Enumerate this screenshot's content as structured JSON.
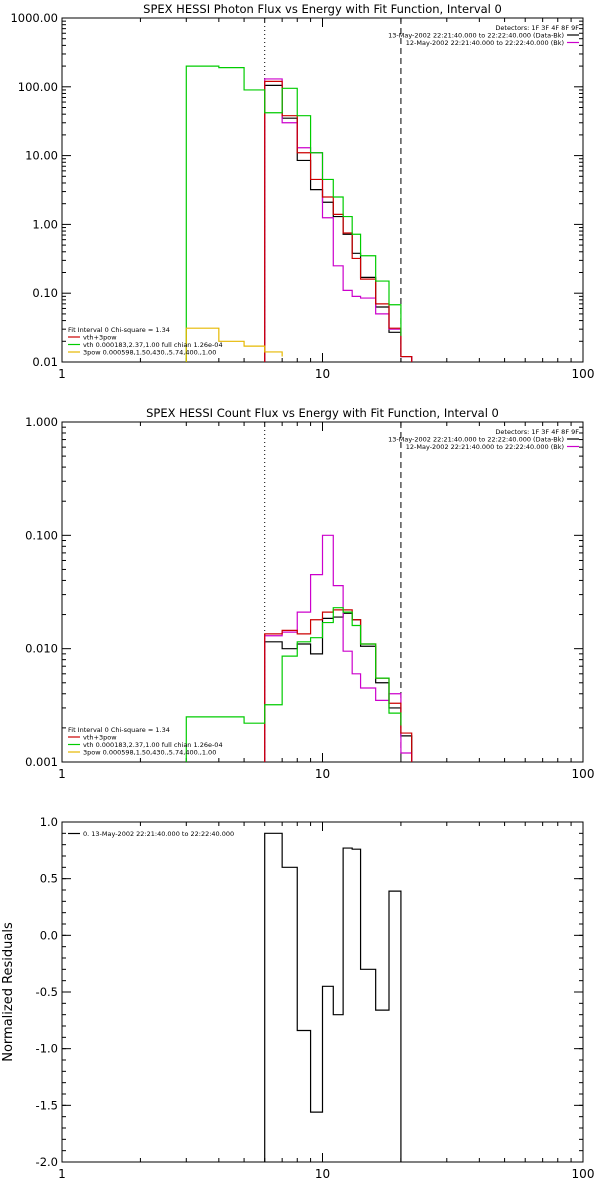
{
  "chart_data": [
    {
      "type": "line",
      "step": true,
      "title": "SPEX HESSI Photon Flux vs Energy with Fit Function, Interval 0",
      "xlabel": "",
      "ylabel": "",
      "xscale": "log",
      "yscale": "log",
      "xlim": [
        1,
        100
      ],
      "ylim": [
        0.01,
        1000
      ],
      "xticks": [
        {
          "v": 1,
          "label": "1"
        },
        {
          "v": 10,
          "label": "10"
        },
        {
          "v": 100,
          "label": "100"
        }
      ],
      "yticks": [
        {
          "v": 0.01,
          "label": "0.01"
        },
        {
          "v": 0.1,
          "label": "0.10"
        },
        {
          "v": 1,
          "label": "1.00"
        },
        {
          "v": 10,
          "label": "10.00"
        },
        {
          "v": 100,
          "label": "100.00"
        },
        {
          "v": 1000,
          "label": "1000.00"
        }
      ],
      "vlines": [
        {
          "x": 6.0,
          "style": "dotted",
          "color": "#000000"
        },
        {
          "x": 20.0,
          "style": "dashed",
          "color": "#000000"
        }
      ],
      "legend_right": {
        "header": "Detectors: 1F 3F 4F 8F 9F",
        "entries": [
          {
            "text": "13-May-2002 22:21:40.000 to 22:22:40.000 (Data-Bk)",
            "color": "#000000"
          },
          {
            "text": "12-May-2002 22:21:40.000 to 22:22:40.000 (Bk)",
            "color": "#cc00cc"
          }
        ]
      },
      "legend_left": {
        "header": "Fit Interval 0   Chi-square = 1.34",
        "entries": [
          {
            "text": "vth+3pow",
            "color": "#cc0000"
          },
          {
            "text": "vth 0.000183,2.37,1.00   full chian 1.26e-04",
            "color": "#00cc00"
          },
          {
            "text": "3pow 0.000598,1.50,430.,5.74,400.,1.00",
            "color": "#e6b800"
          }
        ]
      },
      "series": [
        {
          "color": "#000000",
          "edges": [
            6,
            7,
            8,
            9,
            10,
            11,
            12,
            13,
            14,
            16,
            18,
            20,
            22
          ],
          "values": [
            105,
            35,
            8.5,
            3.2,
            2.1,
            1.3,
            0.72,
            0.38,
            0.17,
            0.063,
            0.027,
            0.012
          ]
        },
        {
          "color": "#cc00cc",
          "edges": [
            6,
            7,
            8,
            9,
            10,
            11,
            12,
            13,
            14,
            16,
            18,
            20,
            22
          ],
          "values": [
            130,
            30,
            13,
            11,
            1.25,
            0.25,
            0.11,
            0.09,
            0.085,
            0.05,
            0.03,
            0.012
          ]
        },
        {
          "color": "#cc0000",
          "edges": [
            6,
            7,
            8,
            9,
            10,
            11,
            12,
            13,
            14,
            16,
            18,
            20,
            22
          ],
          "values": [
            120,
            38,
            11,
            4.5,
            2.5,
            1.4,
            0.75,
            0.32,
            0.16,
            0.07,
            0.031,
            0.012
          ]
        },
        {
          "color": "#00cc00",
          "edges": [
            3,
            4,
            5,
            6,
            7,
            8,
            9,
            10,
            11,
            12,
            13,
            14,
            16,
            18,
            20
          ],
          "values": [
            200,
            190,
            90,
            42,
            95,
            38,
            11,
            4.5,
            2.5,
            1.3,
            0.72,
            0.35,
            0.15,
            0.068,
            0.024
          ]
        },
        {
          "color": "#e6b800",
          "edges": [
            3,
            4,
            5,
            6,
            7
          ],
          "values": [
            0.031,
            0.02,
            0.017,
            0.014,
            0.012
          ]
        }
      ]
    },
    {
      "type": "line",
      "step": true,
      "title": "SPEX HESSI Count Flux vs Energy with Fit Function, Interval 0",
      "xlabel": "",
      "ylabel": "",
      "xscale": "log",
      "yscale": "log",
      "xlim": [
        1,
        100
      ],
      "ylim": [
        0.001,
        1
      ],
      "xticks": [
        {
          "v": 1,
          "label": "1"
        },
        {
          "v": 10,
          "label": "10"
        },
        {
          "v": 100,
          "label": "100"
        }
      ],
      "yticks": [
        {
          "v": 0.001,
          "label": "0.001"
        },
        {
          "v": 0.01,
          "label": "0.010"
        },
        {
          "v": 0.1,
          "label": "0.100"
        },
        {
          "v": 1,
          "label": "1.000"
        }
      ],
      "vlines": [
        {
          "x": 6.0,
          "style": "dotted",
          "color": "#000000"
        },
        {
          "x": 20.0,
          "style": "dashed",
          "color": "#000000"
        }
      ],
      "legend_right": {
        "header": "Detectors: 1F 3F 4F 8F 9F",
        "entries": [
          {
            "text": "13-May-2002 22:21:40.000 to 22:22:40.000 (Data-Bk)",
            "color": "#000000"
          },
          {
            "text": "12-May-2002 22:21:40.000 to 22:22:40.000 (Bk)",
            "color": "#cc00cc"
          }
        ]
      },
      "legend_left": {
        "header": "Fit Interval 0   Chi-square = 1.34",
        "entries": [
          {
            "text": "vth+3pow",
            "color": "#cc0000"
          },
          {
            "text": "vth 0.000183,2.37,1.00   full chian 1.26e-04",
            "color": "#00cc00"
          },
          {
            "text": "3pow 0.000598,1.50,430.,5.74,400.,1.00",
            "color": "#e6b800"
          }
        ]
      },
      "series": [
        {
          "color": "#000000",
          "edges": [
            6,
            7,
            8,
            9,
            10,
            11,
            12,
            13,
            14,
            16,
            18,
            20,
            22
          ],
          "values": [
            0.0115,
            0.01,
            0.011,
            0.009,
            0.0185,
            0.019,
            0.0205,
            0.018,
            0.0105,
            0.005,
            0.003,
            0.0017
          ]
        },
        {
          "color": "#cc00cc",
          "edges": [
            6,
            7,
            8,
            9,
            10,
            11,
            12,
            13,
            14,
            16,
            18,
            20,
            22
          ],
          "values": [
            0.013,
            0.014,
            0.021,
            0.045,
            0.1,
            0.036,
            0.0095,
            0.006,
            0.0045,
            0.0035,
            0.004,
            0.0012
          ]
        },
        {
          "color": "#cc0000",
          "edges": [
            6,
            7,
            8,
            9,
            10,
            11,
            12,
            13,
            14,
            16,
            18,
            20,
            22
          ],
          "values": [
            0.0135,
            0.0145,
            0.0135,
            0.018,
            0.021,
            0.022,
            0.022,
            0.018,
            0.011,
            0.0055,
            0.0033,
            0.0018
          ]
        },
        {
          "color": "#00cc00",
          "edges": [
            3,
            4,
            5,
            6,
            7,
            8,
            9,
            10,
            11,
            12,
            13,
            14,
            16,
            18,
            20
          ],
          "values": [
            0.0025,
            0.0025,
            0.0022,
            0.0032,
            0.0086,
            0.0115,
            0.0125,
            0.017,
            0.023,
            0.021,
            0.016,
            0.011,
            0.0055,
            0.0027,
            0.0021
          ]
        }
      ]
    },
    {
      "type": "line",
      "step": true,
      "title": "",
      "xlabel": "",
      "ylabel": "Normalized Residuals",
      "xscale": "log",
      "yscale": "linear",
      "xlim": [
        1,
        100
      ],
      "ylim": [
        -2.0,
        1.0
      ],
      "xticks": [
        {
          "v": 1,
          "label": "1"
        },
        {
          "v": 10,
          "label": "10"
        },
        {
          "v": 100,
          "label": "100"
        }
      ],
      "yticks": [
        {
          "v": -2.0,
          "label": "-2.0"
        },
        {
          "v": -1.5,
          "label": "-1.5"
        },
        {
          "v": -1.0,
          "label": "-1.0"
        },
        {
          "v": -0.5,
          "label": "-0.5"
        },
        {
          "v": 0.0,
          "label": "0.0"
        },
        {
          "v": 0.5,
          "label": "0.5"
        },
        {
          "v": 1.0,
          "label": "1.0"
        }
      ],
      "legend_left": {
        "header": "",
        "entries": [
          {
            "text": "0. 13-May-2002 22:21:40.000 to 22:22:40.000",
            "color": "#000000"
          }
        ]
      },
      "series": [
        {
          "color": "#000000",
          "edges": [
            6,
            7,
            8,
            9,
            10,
            11,
            12,
            13,
            14,
            16,
            18,
            20
          ],
          "values": [
            0.9,
            0.6,
            -0.84,
            -1.56,
            -0.45,
            -0.7,
            0.77,
            0.76,
            -0.3,
            -0.66,
            0.39
          ],
          "drop_to_axis": true
        }
      ]
    }
  ]
}
